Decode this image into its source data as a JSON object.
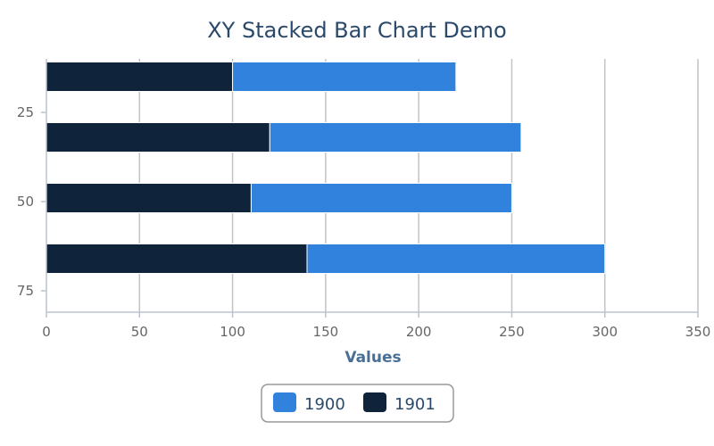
{
  "chart_data": {
    "type": "bar",
    "orientation": "horizontal",
    "stacked": true,
    "title": "XY Stacked Bar Chart Demo",
    "xlabel": "Values",
    "ylabel": "",
    "xlim": [
      0,
      350
    ],
    "xticks": [
      "0",
      "50",
      "100",
      "150",
      "200",
      "250",
      "300",
      "350"
    ],
    "yticks": [
      "25",
      "50",
      "75"
    ],
    "ytick_values": [
      25,
      50,
      75
    ],
    "y": [
      15,
      32,
      49,
      66
    ],
    "ylim": [
      10,
      81
    ],
    "grid": true,
    "legend_position": "bottom",
    "series": [
      {
        "name": "1901",
        "color": "#0f233b",
        "values": [
          100,
          120,
          110,
          140
        ]
      },
      {
        "name": "1900",
        "color": "#3182dc",
        "values": [
          120,
          135,
          140,
          160
        ]
      }
    ],
    "legend": [
      {
        "name": "1900",
        "color": "#3182dc"
      },
      {
        "name": "1901",
        "color": "#0f233b"
      }
    ]
  }
}
